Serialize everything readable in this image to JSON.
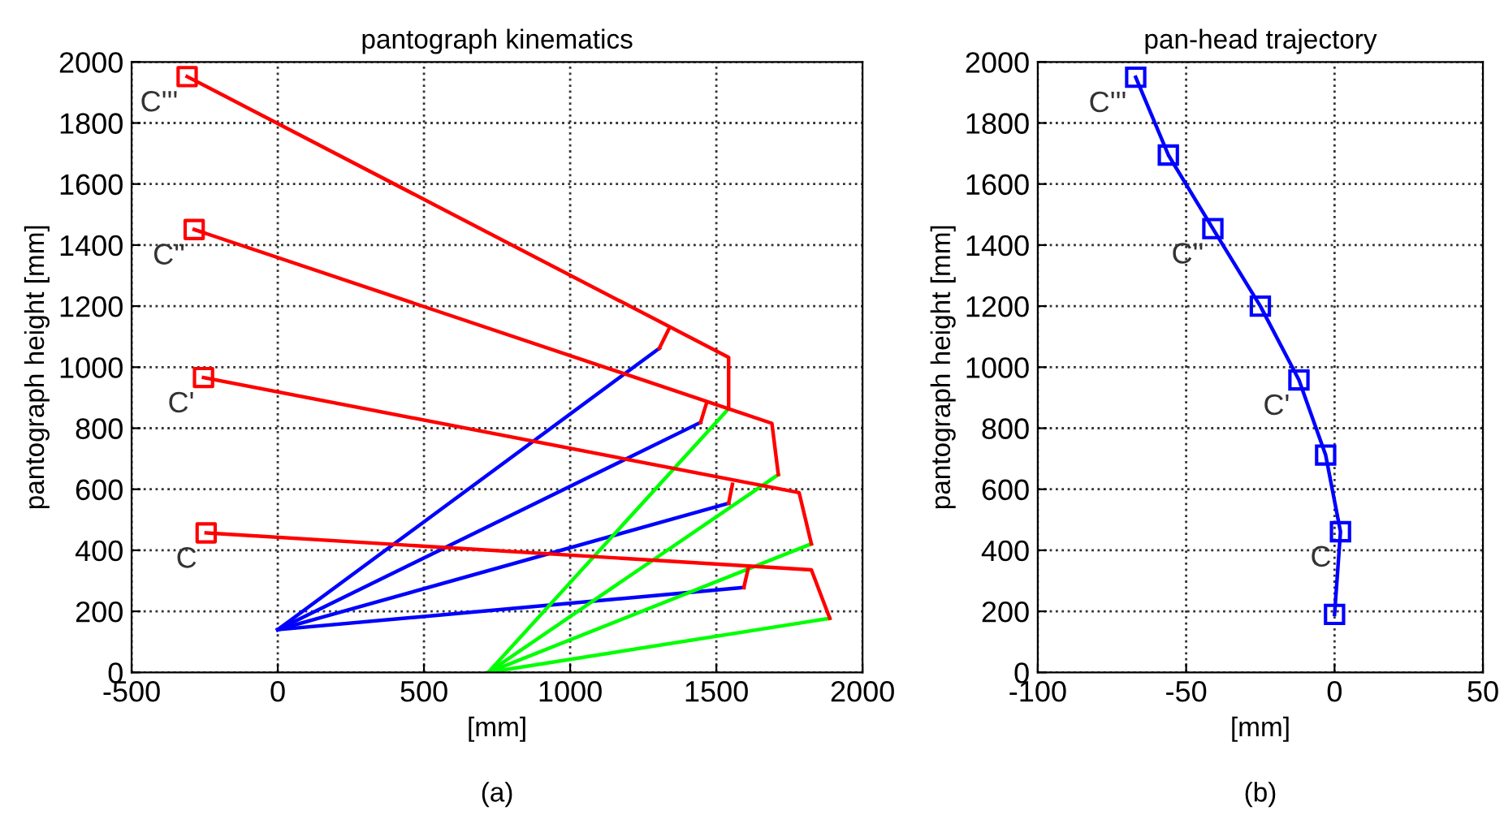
{
  "chart_data": [
    {
      "type": "line",
      "title": "pantograph kinematics",
      "xlabel": "[mm]",
      "ylabel": "pantograph height [mm]",
      "xlim": [
        -500,
        2000
      ],
      "ylim": [
        0,
        2000
      ],
      "xticks": [
        -500,
        0,
        500,
        1000,
        1500,
        2000
      ],
      "yticks": [
        0,
        200,
        400,
        600,
        800,
        1000,
        1200,
        1400,
        1600,
        1800,
        2000
      ],
      "grid": true,
      "line_style": "solid",
      "series": [
        {
          "color": "#0000ff",
          "x": [
            0,
            1594
          ],
          "values": [
            140,
            278
          ]
        },
        {
          "color": "#0000ff",
          "x": [
            0,
            1542
          ],
          "values": [
            140,
            554
          ]
        },
        {
          "color": "#0000ff",
          "x": [
            0,
            1446
          ],
          "values": [
            140,
            819
          ]
        },
        {
          "color": "#0000ff",
          "x": [
            0,
            1305
          ],
          "values": [
            140,
            1062
          ]
        },
        {
          "color": "#00ff00",
          "x": [
            720,
            1888
          ],
          "values": [
            0,
            177
          ]
        },
        {
          "color": "#00ff00",
          "x": [
            720,
            1825
          ],
          "values": [
            0,
            421
          ]
        },
        {
          "color": "#00ff00",
          "x": [
            720,
            1712
          ],
          "values": [
            0,
            648
          ]
        },
        {
          "color": "#00ff00",
          "x": [
            720,
            1542
          ],
          "values": [
            0,
            864
          ]
        },
        {
          "color": "#ff0000",
          "x": [
            -245,
            1825,
            1888
          ],
          "values": [
            457,
            336,
            177
          ]
        },
        {
          "color": "#ff0000",
          "x": [
            -254,
            1783,
            1825
          ],
          "values": [
            966,
            589,
            421
          ]
        },
        {
          "color": "#ff0000",
          "x": [
            -286,
            1690,
            1712
          ],
          "values": [
            1451,
            816,
            648
          ]
        },
        {
          "color": "#ff0000",
          "x": [
            -310,
            1542,
            1542
          ],
          "values": [
            1952,
            1032,
            864
          ]
        },
        {
          "color": "#ff0000",
          "x": [
            1594,
            1610
          ],
          "values": [
            278,
            345
          ]
        },
        {
          "color": "#ff0000",
          "x": [
            1542,
            1555
          ],
          "values": [
            554,
            616
          ]
        },
        {
          "color": "#ff0000",
          "x": [
            1446,
            1466
          ],
          "values": [
            819,
            881
          ]
        },
        {
          "color": "#ff0000",
          "x": [
            1305,
            1338
          ],
          "values": [
            1062,
            1126
          ]
        },
        {
          "type": "scatter",
          "marker": "square",
          "color": "#ff0000",
          "x": [
            -245,
            -254,
            -286,
            -310
          ],
          "values": [
            457,
            966,
            1451,
            1952
          ]
        }
      ],
      "annotations": [
        {
          "text": "C",
          "x": -245,
          "y": 457
        },
        {
          "text": "C'",
          "x": -254,
          "y": 966
        },
        {
          "text": "C''",
          "x": -286,
          "y": 1451
        },
        {
          "text": "C'''",
          "x": -310,
          "y": 1952
        },
        "(a)"
      ]
    },
    {
      "type": "line",
      "title": "pan-head trajectory",
      "xlabel": "[mm]",
      "ylabel": "pantograph height [mm]",
      "xlim": [
        -100,
        50
      ],
      "ylim": [
        0,
        2000
      ],
      "xticks": [
        -100,
        -50,
        0,
        50
      ],
      "yticks": [
        0,
        200,
        400,
        600,
        800,
        1000,
        1200,
        1400,
        1600,
        1800,
        2000
      ],
      "grid": true,
      "marker": "square",
      "line_style": "solid",
      "series": [
        {
          "color": "#0000ff",
          "x": [
            -67,
            -56,
            -41,
            -25,
            -12,
            -3,
            2,
            0
          ],
          "values": [
            1950,
            1695,
            1454,
            1200,
            958,
            712,
            461,
            190
          ]
        }
      ],
      "annotations": [
        {
          "text": "C'''",
          "x": -67,
          "y": 1950
        },
        {
          "text": "C''",
          "x": -41,
          "y": 1454
        },
        {
          "text": "C'",
          "x": -12,
          "y": 958
        },
        {
          "text": "C",
          "x": 2,
          "y": 461
        },
        "(b)"
      ]
    }
  ]
}
